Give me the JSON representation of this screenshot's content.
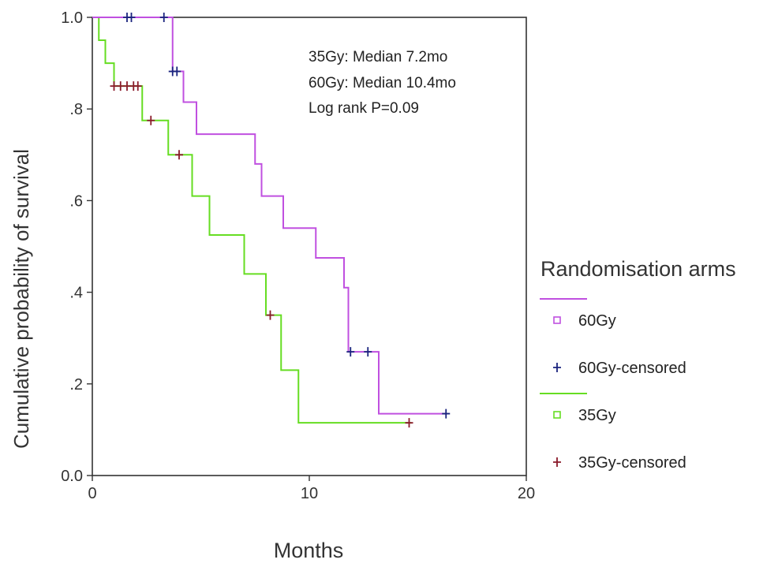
{
  "chart_data": {
    "type": "line",
    "subtype": "kaplan-meier step",
    "xlabel": "Months",
    "ylabel": "Cumulative probability of survival",
    "xlim": [
      0,
      20
    ],
    "ylim": [
      0,
      1
    ],
    "x_ticks": [
      0,
      10,
      20
    ],
    "x_tick_labels": [
      "0",
      "10",
      "20"
    ],
    "y_ticks": [
      0,
      0.2,
      0.4,
      0.6,
      0.8,
      1.0
    ],
    "y_tick_labels": [
      "0.0",
      ".2",
      ".4",
      ".6",
      ".8",
      "1.0"
    ],
    "annotations": [
      "35Gy: Median 7.2mo",
      "60Gy: Median 10.4mo",
      "Log rank P=0.09"
    ],
    "legend": {
      "title": "Randomisation arms",
      "position": "right",
      "entries": [
        {
          "label": "60Gy",
          "color": "#c050e0",
          "marker": "square-open"
        },
        {
          "label": "60Gy-censored",
          "color": "#1a237e",
          "marker": "plus"
        },
        {
          "label": "35Gy",
          "color": "#66dd22",
          "marker": "square-open"
        },
        {
          "label": "35Gy-censored",
          "color": "#8a1a2a",
          "marker": "plus"
        }
      ]
    },
    "series": [
      {
        "name": "60Gy",
        "color": "#c050e0",
        "steps": [
          [
            0,
            1.0
          ],
          [
            3.7,
            0.882
          ],
          [
            4.2,
            0.815
          ],
          [
            4.8,
            0.745
          ],
          [
            7.5,
            0.68
          ],
          [
            7.8,
            0.61
          ],
          [
            8.8,
            0.54
          ],
          [
            10.3,
            0.475
          ],
          [
            11.6,
            0.41
          ],
          [
            11.8,
            0.27
          ],
          [
            13.2,
            0.135
          ],
          [
            16.3,
            0.135
          ]
        ],
        "censored": [
          [
            1.6,
            1.0
          ],
          [
            1.8,
            1.0
          ],
          [
            3.3,
            1.0
          ],
          [
            3.7,
            0.882
          ],
          [
            3.9,
            0.882
          ],
          [
            11.9,
            0.27
          ],
          [
            12.7,
            0.27
          ],
          [
            16.3,
            0.135
          ]
        ],
        "censored_color": "#1a237e"
      },
      {
        "name": "35Gy",
        "color": "#66dd22",
        "steps": [
          [
            0,
            1.0
          ],
          [
            0.3,
            0.95
          ],
          [
            0.6,
            0.9
          ],
          [
            1.0,
            0.85
          ],
          [
            2.3,
            0.775
          ],
          [
            3.5,
            0.7
          ],
          [
            4.6,
            0.61
          ],
          [
            5.4,
            0.525
          ],
          [
            7.0,
            0.44
          ],
          [
            8.0,
            0.35
          ],
          [
            8.7,
            0.23
          ],
          [
            9.5,
            0.115
          ],
          [
            14.7,
            0.115
          ]
        ],
        "censored": [
          [
            1.0,
            0.85
          ],
          [
            1.3,
            0.85
          ],
          [
            1.6,
            0.85
          ],
          [
            1.9,
            0.85
          ],
          [
            2.1,
            0.85
          ],
          [
            2.7,
            0.775
          ],
          [
            4.0,
            0.7
          ],
          [
            8.2,
            0.35
          ],
          [
            14.6,
            0.115
          ]
        ],
        "censored_color": "#8a1a2a"
      }
    ]
  }
}
